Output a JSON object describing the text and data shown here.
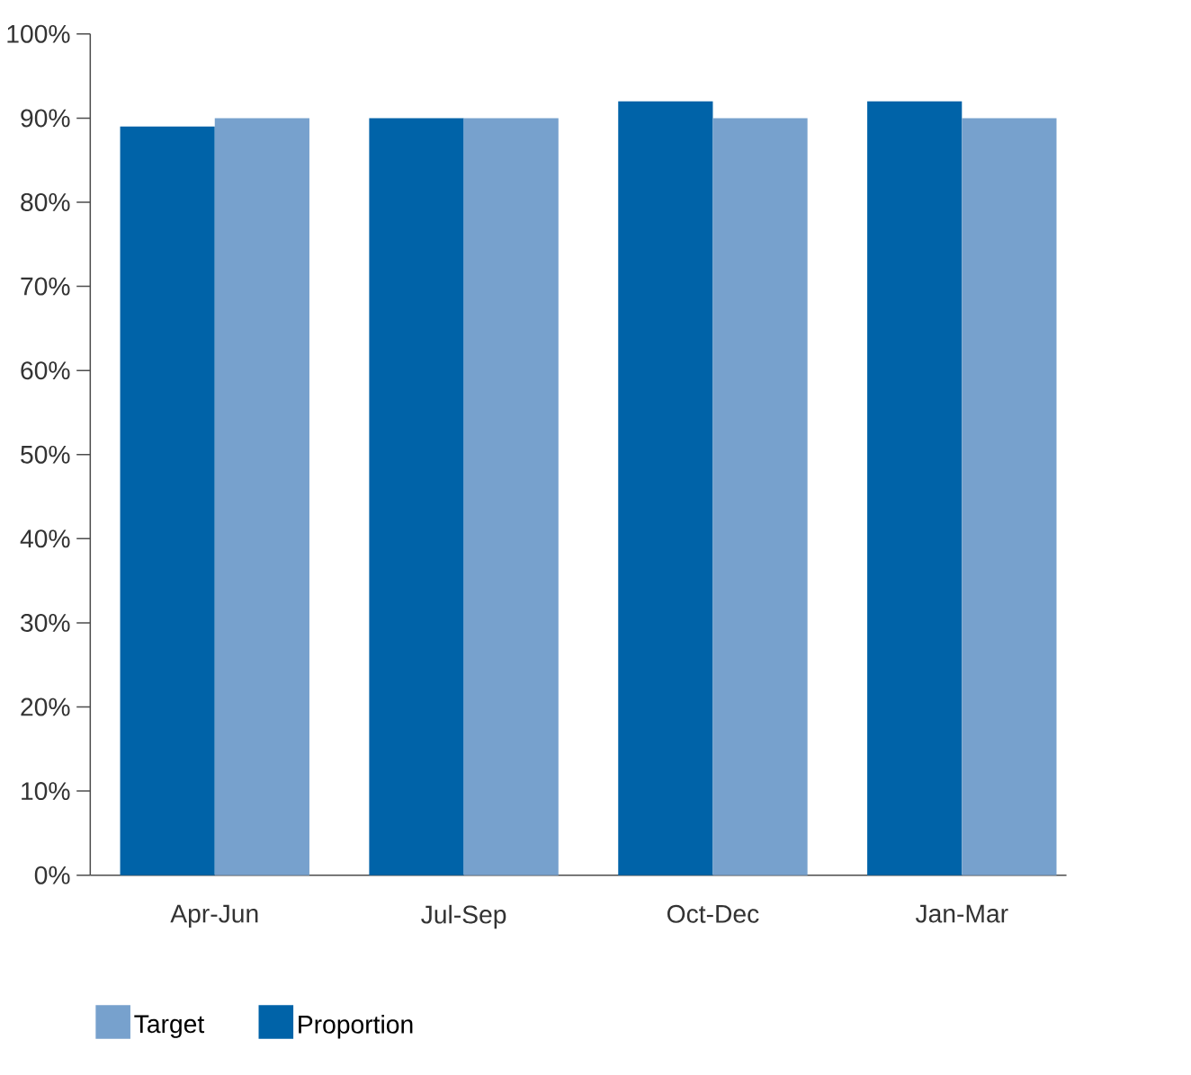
{
  "chart_data": {
    "type": "bar",
    "categories": [
      "Apr-Jun",
      "Jul-Sep",
      "Oct-Dec",
      "Jan-Mar"
    ],
    "series": [
      {
        "name": "Proportion",
        "color": "#0063a8",
        "values": [
          89,
          90,
          92,
          92
        ]
      },
      {
        "name": "Target",
        "color": "#77a1cd",
        "values": [
          90,
          90,
          90,
          90
        ]
      }
    ],
    "ylim": [
      0,
      100
    ],
    "yticks": [
      {
        "value": 0,
        "label": "0%"
      },
      {
        "value": 10,
        "label": "10%"
      },
      {
        "value": 20,
        "label": "20%"
      },
      {
        "value": 30,
        "label": "30%"
      },
      {
        "value": 40,
        "label": "40%"
      },
      {
        "value": 50,
        "label": "50%"
      },
      {
        "value": 60,
        "label": "60%"
      },
      {
        "value": 70,
        "label": "70%"
      },
      {
        "value": 80,
        "label": "80%"
      },
      {
        "value": 90,
        "label": "90%"
      },
      {
        "value": 100,
        "label": "100%"
      }
    ],
    "grid": false,
    "legend": "bottom"
  }
}
